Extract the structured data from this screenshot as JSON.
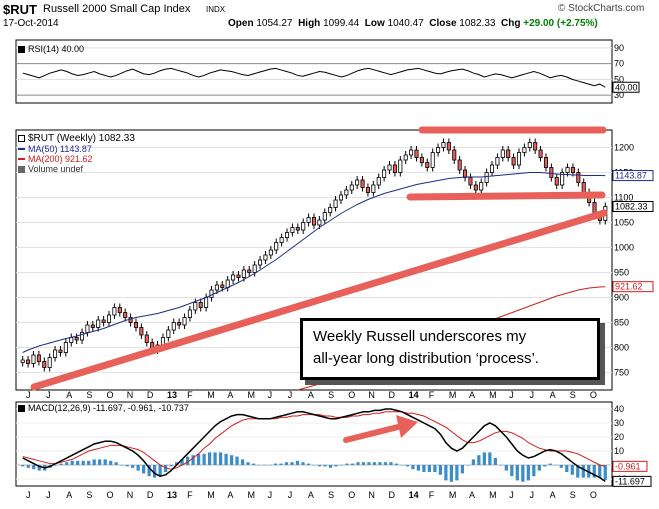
{
  "header": {
    "symbol": "$RUT",
    "name": "Russell 2000 Small Cap Index",
    "exchange": "INDX",
    "date": "17-Oct-2014",
    "brand": "© StockCharts.com",
    "open_label": "Open",
    "open": "1054.27",
    "high_label": "High",
    "high": "1099.44",
    "low_label": "Low",
    "low": "1040.47",
    "close_label": "Close",
    "close": "1082.33",
    "chg_label": "Chg",
    "chg": "+29.00 (+2.75%)",
    "chg_color": "#008000"
  },
  "annotation": {
    "line1": "Weekly Russell underscores my",
    "line2": "all-year long distribution ‘process’."
  },
  "colors": {
    "price": "#000000",
    "ma50": "#1f2a8c",
    "ma200": "#d01c1c",
    "annotation_lines": "#e8605a",
    "macd_hist": "#3a8dc8",
    "macd_line": "#000000",
    "macd_signal": "#d01c1c",
    "rsi_line": "#000000",
    "up_fill": "#ffffff",
    "down_fill": "#e8605a"
  },
  "chart_data": [
    {
      "type": "line",
      "panel": "rsi",
      "legend": "RSI(14) 40.00",
      "yticks": [
        30,
        50,
        70,
        90
      ],
      "ylim": [
        20,
        100
      ],
      "marker_label": "40.00",
      "values": [
        58,
        56,
        54,
        52,
        55,
        58,
        60,
        62,
        60,
        57,
        55,
        56,
        58,
        60,
        57,
        55,
        53,
        55,
        58,
        61,
        63,
        60,
        57,
        56,
        58,
        61,
        63,
        64,
        62,
        60,
        58,
        55,
        53,
        55,
        58,
        60,
        62,
        61,
        60,
        58,
        56,
        55,
        57,
        59,
        61,
        63,
        64,
        62,
        60,
        58,
        55,
        54,
        56,
        58,
        60,
        59,
        57,
        55,
        53,
        55,
        58,
        61,
        63,
        64,
        62,
        60,
        58,
        56,
        58,
        60,
        62,
        63,
        64,
        62,
        60,
        58,
        57,
        59,
        61,
        62,
        63,
        61,
        58,
        56,
        53,
        55,
        57,
        56,
        54,
        52,
        54,
        56,
        58,
        60,
        58,
        55,
        52,
        54,
        55,
        53,
        50,
        48,
        46,
        44,
        42,
        44,
        40
      ]
    },
    {
      "type": "candlestick",
      "panel": "price",
      "legend_title": "$RUT (Weekly) 1082.33",
      "series": [
        {
          "name": "MA(50) 1143.87",
          "color": "#1f2a8c",
          "marker_label": "1143.87"
        },
        {
          "name": "MA(200) 921.62",
          "color": "#d01c1c",
          "marker_label": "921.62"
        },
        {
          "name": "Volume undef",
          "color": "#555555"
        }
      ],
      "close_marker_label": "1082.33",
      "yticks": [
        750,
        800,
        850,
        900,
        950,
        1000,
        1050,
        1100,
        1150,
        1200
      ],
      "ylim": [
        715,
        1235
      ],
      "closes": [
        775,
        768,
        785,
        772,
        760,
        780,
        795,
        790,
        810,
        820,
        815,
        830,
        845,
        840,
        855,
        850,
        865,
        880,
        870,
        860,
        850,
        840,
        825,
        810,
        795,
        805,
        820,
        835,
        850,
        845,
        860,
        875,
        890,
        880,
        900,
        915,
        925,
        920,
        935,
        945,
        940,
        955,
        950,
        965,
        975,
        985,
        995,
        1010,
        1020,
        1030,
        1040,
        1035,
        1050,
        1060,
        1045,
        1055,
        1070,
        1080,
        1095,
        1105,
        1115,
        1125,
        1135,
        1120,
        1110,
        1125,
        1140,
        1155,
        1165,
        1150,
        1175,
        1185,
        1195,
        1180,
        1170,
        1160,
        1190,
        1200,
        1210,
        1195,
        1175,
        1155,
        1140,
        1125,
        1115,
        1130,
        1150,
        1165,
        1180,
        1195,
        1180,
        1165,
        1190,
        1200,
        1210,
        1195,
        1180,
        1160,
        1140,
        1125,
        1150,
        1160,
        1150,
        1130,
        1110,
        1090,
        1065,
        1054,
        1082
      ],
      "ma50": [
        790,
        795,
        799,
        803,
        806,
        809,
        812,
        815,
        818,
        820,
        823,
        826,
        829,
        832,
        835,
        838,
        842,
        846,
        850,
        854,
        857,
        860,
        862,
        864,
        866,
        868,
        871,
        874,
        877,
        880,
        884,
        888,
        892,
        896,
        900,
        905,
        910,
        915,
        920,
        925,
        930,
        936,
        942,
        948,
        955,
        962,
        969,
        976,
        984,
        992,
        1000,
        1008,
        1016,
        1024,
        1032,
        1040,
        1047,
        1054,
        1061,
        1068,
        1074,
        1080,
        1086,
        1091,
        1096,
        1100,
        1104,
        1108,
        1111,
        1114,
        1117,
        1120,
        1123,
        1126,
        1128,
        1130,
        1132,
        1134,
        1136,
        1138,
        1139,
        1140,
        1141,
        1141,
        1141,
        1141,
        1142,
        1143,
        1144,
        1145,
        1146,
        1147,
        1148,
        1149,
        1150,
        1150,
        1150,
        1149,
        1148,
        1147,
        1146,
        1146,
        1145,
        1145,
        1144,
        1144,
        1144,
        1144,
        1143.87
      ],
      "ma200": [
        null,
        null,
        null,
        null,
        null,
        null,
        null,
        null,
        null,
        null,
        null,
        null,
        null,
        null,
        null,
        null,
        null,
        null,
        null,
        null,
        null,
        null,
        null,
        null,
        null,
        null,
        null,
        null,
        null,
        null,
        null,
        null,
        null,
        null,
        null,
        null,
        null,
        null,
        null,
        null,
        null,
        null,
        null,
        null,
        null,
        null,
        null,
        null,
        null,
        null,
        null,
        715,
        718,
        721,
        724,
        727,
        731,
        735,
        739,
        743,
        747,
        751,
        755,
        759,
        763,
        767,
        771,
        775,
        779,
        783,
        787,
        791,
        795,
        799,
        803,
        807,
        811,
        815,
        819,
        823,
        827,
        831,
        835,
        839,
        843,
        847,
        851,
        855,
        859,
        863,
        867,
        871,
        875,
        879,
        883,
        887,
        891,
        895,
        899,
        903,
        906,
        909,
        912,
        915,
        917,
        919,
        920,
        921,
        921.62
      ]
    },
    {
      "type": "line",
      "panel": "macd",
      "legend": "MACD(12,26,9) -11.697, -0.961, -10.737",
      "yticks": [
        -10,
        0,
        10,
        20,
        30,
        40
      ],
      "ylim": [
        -15,
        45
      ],
      "marker_labels": [
        "-0.961",
        "-11.697"
      ],
      "macd": [
        5,
        3,
        1,
        -1,
        -2,
        -1,
        1,
        3,
        5,
        7,
        9,
        11,
        13,
        15,
        16,
        17,
        17,
        16,
        14,
        12,
        10,
        7,
        3,
        -2,
        -6,
        -8,
        -7,
        -4,
        0,
        4,
        8,
        12,
        16,
        20,
        24,
        28,
        31,
        33,
        35,
        36,
        36,
        35,
        34,
        33,
        33,
        33,
        34,
        35,
        36,
        37,
        38,
        38,
        37,
        36,
        35,
        34,
        33,
        33,
        34,
        35,
        36,
        37,
        38,
        38,
        39,
        39,
        40,
        40,
        39,
        38,
        36,
        34,
        32,
        30,
        28,
        26,
        22,
        16,
        12,
        10,
        12,
        16,
        20,
        24,
        28,
        30,
        28,
        24,
        20,
        15,
        10,
        7,
        5,
        6,
        8,
        10,
        11,
        10,
        8,
        5,
        2,
        -1,
        -3,
        -5,
        -7,
        -9,
        -11.697
      ],
      "signal": [
        6,
        5,
        4,
        3,
        2,
        1,
        1,
        2,
        3,
        4,
        6,
        8,
        10,
        11,
        12,
        13,
        14,
        14,
        14,
        13,
        12,
        11,
        9,
        6,
        3,
        0,
        -2,
        -3,
        -2,
        0,
        2,
        5,
        8,
        12,
        15,
        19,
        22,
        25,
        28,
        30,
        32,
        33,
        33,
        33,
        33,
        33,
        33,
        34,
        34,
        35,
        35,
        36,
        36,
        36,
        36,
        35,
        35,
        34,
        34,
        34,
        35,
        35,
        36,
        36,
        37,
        37,
        38,
        38,
        38,
        38,
        37,
        37,
        36,
        35,
        33,
        31,
        29,
        27,
        24,
        21,
        18,
        16,
        16,
        17,
        19,
        21,
        23,
        24,
        24,
        23,
        21,
        19,
        16,
        14,
        12,
        11,
        10,
        10,
        10,
        10,
        9,
        8,
        6,
        4,
        2,
        0,
        -0.961
      ],
      "histogram": [
        -1,
        -2,
        -3,
        -4,
        -4,
        -2,
        0,
        1,
        2,
        3,
        3,
        3,
        3,
        4,
        4,
        4,
        3,
        2,
        0,
        -1,
        -2,
        -4,
        -6,
        -8,
        -9,
        -8,
        -5,
        -1,
        2,
        4,
        6,
        7,
        8,
        8,
        9,
        9,
        9,
        8,
        7,
        6,
        4,
        2,
        1,
        0,
        0,
        0,
        1,
        1,
        2,
        2,
        3,
        2,
        1,
        0,
        -1,
        -1,
        -2,
        -1,
        0,
        1,
        1,
        2,
        2,
        2,
        2,
        2,
        2,
        2,
        1,
        0,
        -1,
        -3,
        -4,
        -5,
        -5,
        -5,
        -7,
        -11,
        -12,
        -11,
        -6,
        0,
        4,
        7,
        9,
        9,
        5,
        0,
        -4,
        -8,
        -11,
        -12,
        -11,
        -8,
        -4,
        -1,
        1,
        0,
        -2,
        -5,
        -7,
        -9,
        -9,
        -9,
        -9,
        -9,
        -10.737
      ]
    }
  ],
  "x_axis": {
    "months_top": [
      "J",
      "J",
      "A",
      "S",
      "O",
      "N",
      "D",
      "13",
      "F",
      "M",
      "A",
      "M",
      "J",
      "J",
      "A",
      "S",
      "O",
      "N",
      "D",
      "14",
      "F",
      "M",
      "A",
      "M",
      "J",
      "J",
      "A",
      "S",
      "O"
    ],
    "months_bottom": [
      "J",
      "J",
      "A",
      "S",
      "O",
      "N",
      "D",
      "13",
      "F",
      "M",
      "A",
      "M",
      "J",
      "J",
      "A",
      "S",
      "O",
      "N",
      "D",
      "14",
      "F",
      "M",
      "A",
      "M",
      "J",
      "J",
      "A",
      "S",
      "O"
    ]
  }
}
